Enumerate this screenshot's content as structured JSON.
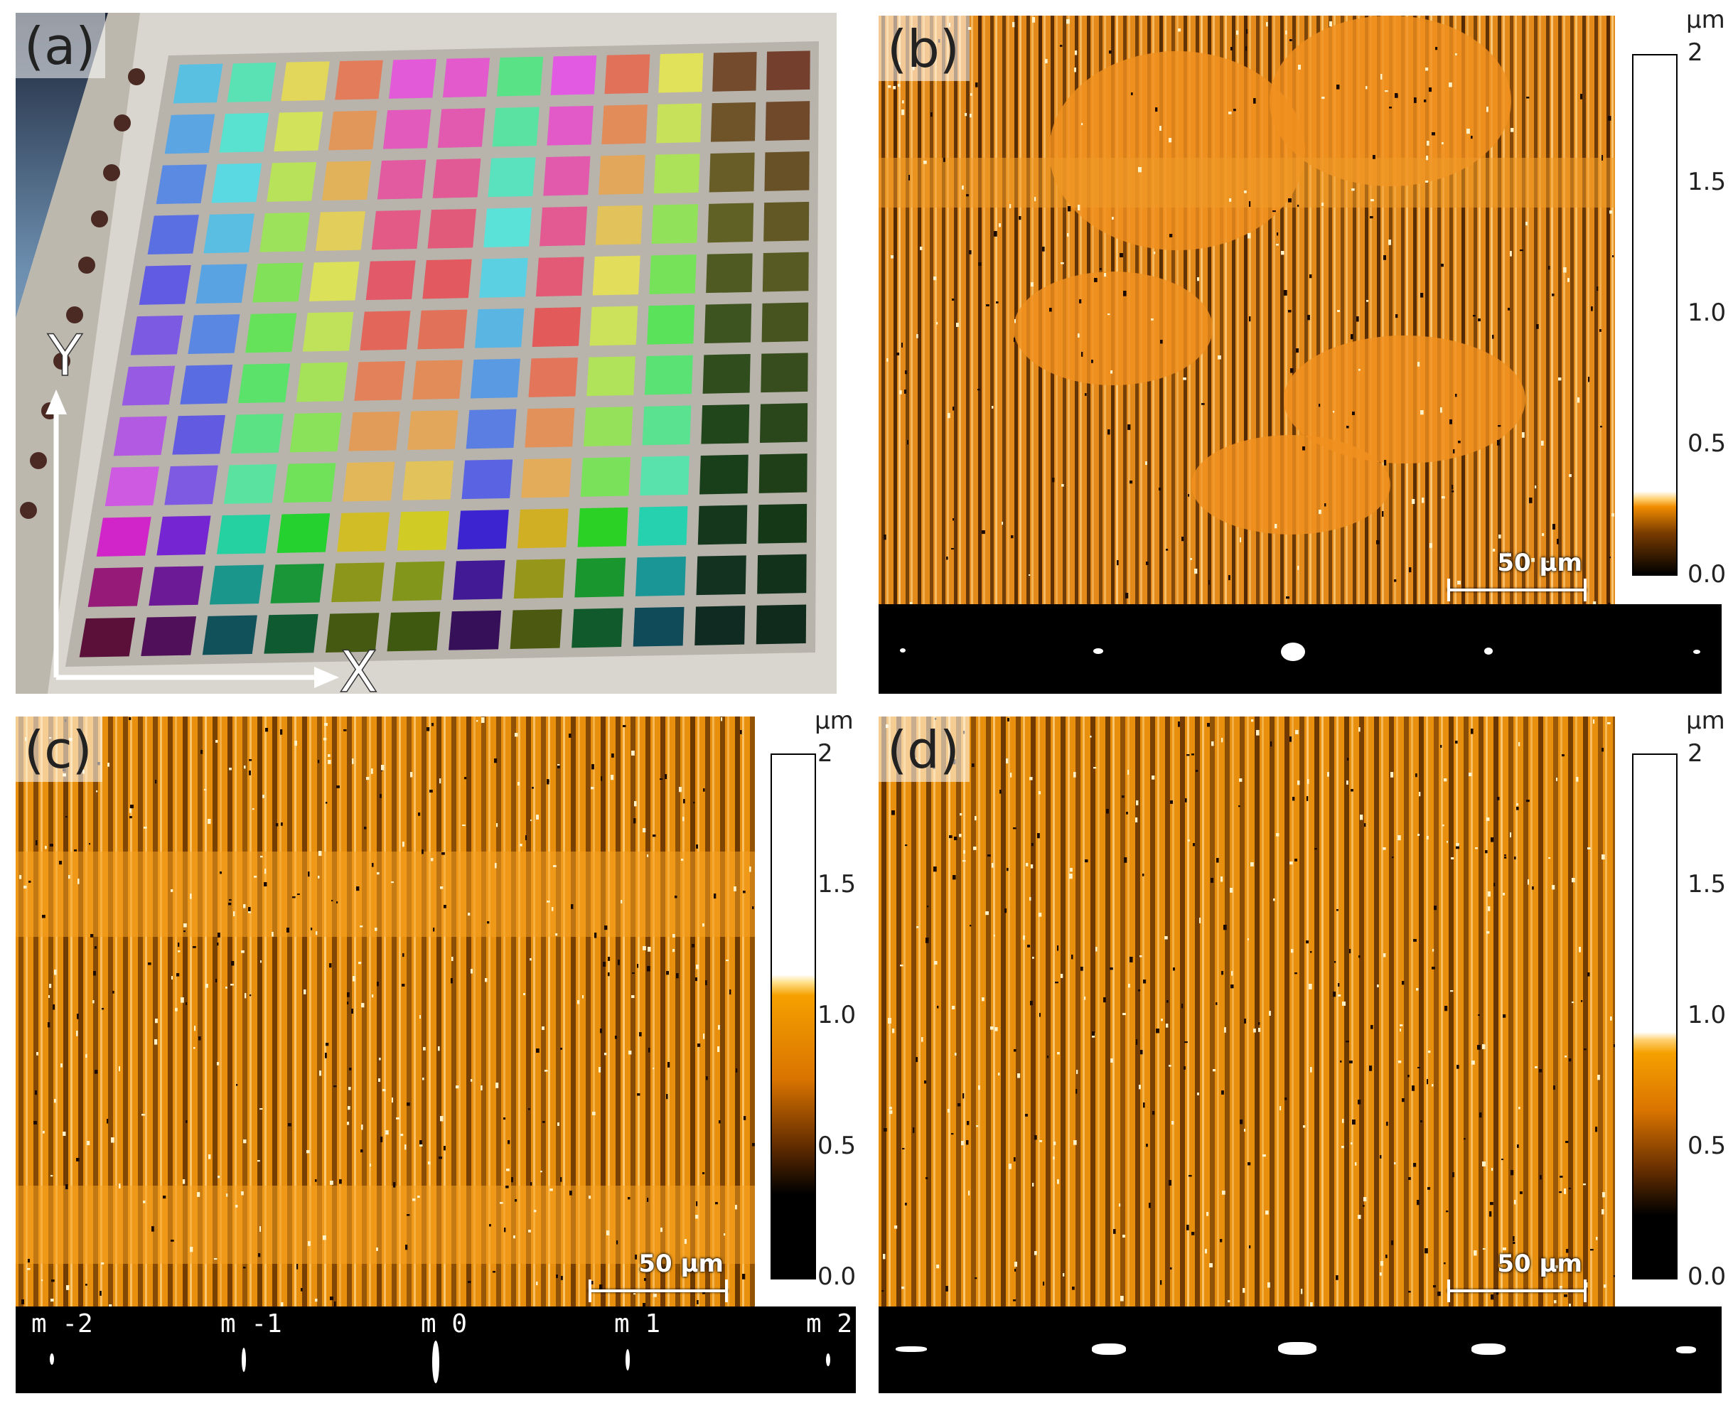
{
  "panel_a": {
    "letter": "(a)",
    "axis_y": "Y",
    "axis_x": "X"
  },
  "panel_b": {
    "letter": "(b)",
    "scalebar": "50 µm",
    "colorbar": {
      "unit": "µm",
      "ticks": [
        "2",
        "1.5",
        "1.0",
        "0.5",
        "0.0"
      ]
    }
  },
  "panel_c": {
    "letter": "(c)",
    "scalebar": "50 µm",
    "colorbar": {
      "unit": "µm",
      "ticks": [
        "2",
        "1.5",
        "1.0",
        "0.5",
        "0.0"
      ]
    },
    "orders": [
      "m -2",
      "m -1",
      "m 0",
      "m 1",
      "m 2"
    ]
  },
  "panel_d": {
    "letter": "(d)",
    "scalebar": "50 µm",
    "colorbar": {
      "unit": "µm",
      "ticks": [
        "2",
        "1.5",
        "1.0",
        "0.5",
        "0.0"
      ]
    }
  },
  "colors": {
    "afm_orange": "#f08c00",
    "afm_dark": "#1a0c00",
    "afm_highlight": "#ffd27a",
    "fft_background": "#000000"
  }
}
